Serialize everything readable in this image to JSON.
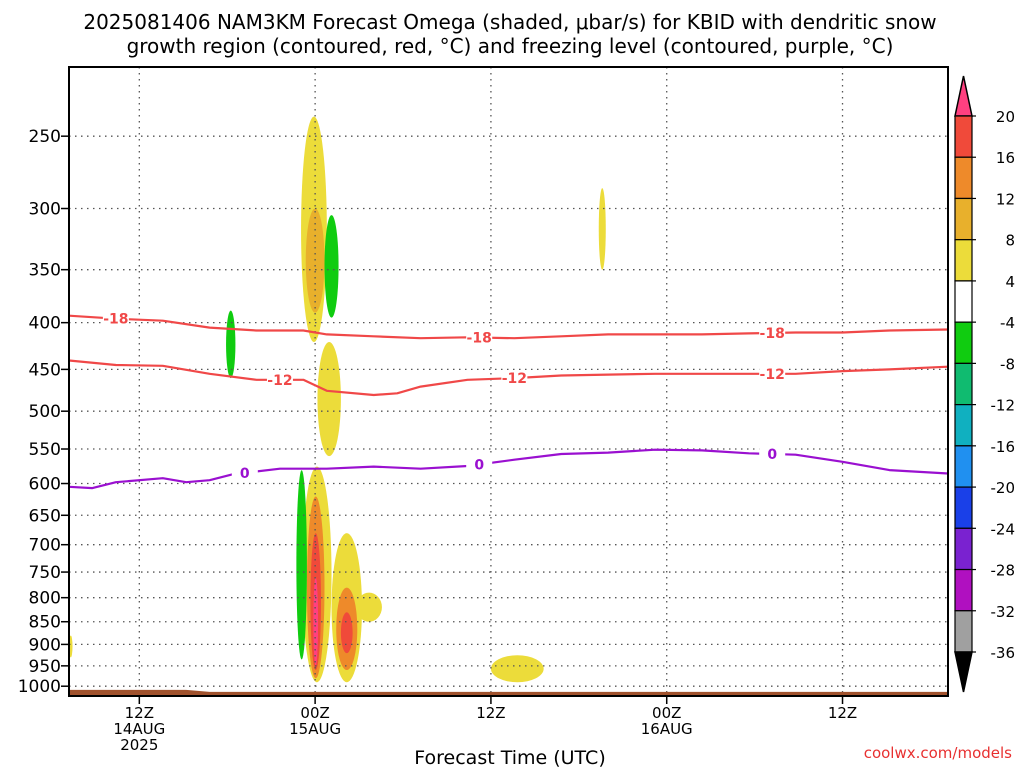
{
  "chart_data": {
    "type": "heatmap",
    "title_line1": "2025081406 NAM3KM Forecast Omega (shaded, μbar/s) for KBID with dendritic snow",
    "title_line2": "growth region (contoured, red, °C) and freezing level (contoured, purple, °C)",
    "xlabel": "Forecast Time (UTC)",
    "ylabel": "",
    "credit": "coolwx.com/models",
    "x_units": "hours since 2025-08-14 06Z",
    "xlim": [
      0,
      75
    ],
    "ylim_hPa": [
      1025,
      210
    ],
    "y_scale": "log-pressure",
    "y_ticks": [
      250,
      300,
      350,
      400,
      450,
      500,
      550,
      600,
      650,
      700,
      750,
      800,
      850,
      900,
      950,
      1000
    ],
    "x_ticks": [
      {
        "x": 6,
        "lines": [
          "12Z",
          "14AUG",
          "2025"
        ]
      },
      {
        "x": 21,
        "lines": [
          "00Z",
          "15AUG"
        ]
      },
      {
        "x": 36,
        "lines": [
          "12Z"
        ]
      },
      {
        "x": 51,
        "lines": [
          "00Z",
          "16AUG"
        ]
      },
      {
        "x": 66,
        "lines": [
          "12Z"
        ]
      }
    ],
    "grid": true,
    "colorbar": {
      "labels": [
        "20",
        "16",
        "12",
        "8",
        "4",
        "-4",
        "-8",
        "-12",
        "-16",
        "-20",
        "-24",
        "-28",
        "-32",
        "-36"
      ],
      "colors": [
        "#ff4080",
        "#f04a3a",
        "#ee8a2a",
        "#e8b02c",
        "#ecdc3a",
        "#ffffff",
        "#10cc10",
        "#10bb70",
        "#10b0c0",
        "#2090f0",
        "#1a40e8",
        "#7a22d0",
        "#b010c0",
        "#a0a0a0",
        "#000000"
      ]
    },
    "contours": [
      {
        "name": "-18",
        "color": "#f04848",
        "label_x": [
          4,
          35,
          60
        ],
        "points": [
          [
            0,
            393
          ],
          [
            4,
            396
          ],
          [
            8,
            398
          ],
          [
            12,
            405
          ],
          [
            16,
            408
          ],
          [
            20,
            408
          ],
          [
            22,
            412
          ],
          [
            26,
            414
          ],
          [
            30,
            416
          ],
          [
            34,
            415
          ],
          [
            38,
            416
          ],
          [
            42,
            414
          ],
          [
            46,
            412
          ],
          [
            50,
            412
          ],
          [
            54,
            412
          ],
          [
            58,
            411
          ],
          [
            62,
            410
          ],
          [
            66,
            410
          ],
          [
            70,
            408
          ],
          [
            75,
            407
          ]
        ]
      },
      {
        "name": "-12",
        "color": "#f04848",
        "label_x": [
          18,
          38,
          60
        ],
        "points": [
          [
            0,
            440
          ],
          [
            4,
            445
          ],
          [
            8,
            446
          ],
          [
            12,
            455
          ],
          [
            16,
            462
          ],
          [
            20,
            462
          ],
          [
            22,
            475
          ],
          [
            26,
            480
          ],
          [
            28,
            478
          ],
          [
            30,
            470
          ],
          [
            34,
            462
          ],
          [
            38,
            460
          ],
          [
            42,
            457
          ],
          [
            46,
            456
          ],
          [
            50,
            455
          ],
          [
            54,
            455
          ],
          [
            58,
            455
          ],
          [
            62,
            455
          ],
          [
            66,
            452
          ],
          [
            70,
            450
          ],
          [
            75,
            447
          ]
        ]
      },
      {
        "name": "0",
        "color": "#9a10d0",
        "label_x": [
          15,
          35,
          60
        ],
        "points": [
          [
            0,
            605
          ],
          [
            2,
            607
          ],
          [
            4,
            598
          ],
          [
            8,
            592
          ],
          [
            10,
            598
          ],
          [
            12,
            595
          ],
          [
            14,
            586
          ],
          [
            18,
            578
          ],
          [
            22,
            578
          ],
          [
            26,
            575
          ],
          [
            30,
            578
          ],
          [
            34,
            574
          ],
          [
            38,
            565
          ],
          [
            42,
            557
          ],
          [
            46,
            555
          ],
          [
            50,
            551
          ],
          [
            54,
            552
          ],
          [
            58,
            556
          ],
          [
            62,
            558
          ],
          [
            66,
            568
          ],
          [
            70,
            580
          ],
          [
            75,
            585
          ]
        ]
      }
    ],
    "omega_cells": [
      {
        "x": [
          19.8,
          22.0
        ],
        "p": [
          238,
          420
        ],
        "value": 5
      },
      {
        "x": [
          20.2,
          21.8
        ],
        "p": [
          300,
          390
        ],
        "value": 10
      },
      {
        "x": [
          21.2,
          23.2
        ],
        "p": [
          420,
          560
        ],
        "value": 5
      },
      {
        "x": [
          19.9,
          22.4
        ],
        "p": [
          575,
          990
        ],
        "value": 6
      },
      {
        "x": [
          20.3,
          21.8
        ],
        "p": [
          620,
          980
        ],
        "value": 12
      },
      {
        "x": [
          20.6,
          21.5
        ],
        "p": [
          680,
          960
        ],
        "value": 18
      },
      {
        "x": [
          20.85,
          21.25
        ],
        "p": [
          760,
          950
        ],
        "value": 22
      },
      {
        "x": [
          22.4,
          25.0
        ],
        "p": [
          680,
          990
        ],
        "value": 5
      },
      {
        "x": [
          22.8,
          24.6
        ],
        "p": [
          780,
          960
        ],
        "value": 12
      },
      {
        "x": [
          23.2,
          24.2
        ],
        "p": [
          830,
          920
        ],
        "value": 18
      },
      {
        "x": [
          24.5,
          26.7
        ],
        "p": [
          790,
          850
        ],
        "value": 5
      },
      {
        "x": [
          36.0,
          40.5
        ],
        "p": [
          925,
          990
        ],
        "value": 5
      },
      {
        "x": [
          45.2,
          45.8
        ],
        "p": [
          285,
          350
        ],
        "value": 5
      },
      {
        "x": [
          0.0,
          0.3
        ],
        "p": [
          880,
          930
        ],
        "value": 5
      },
      {
        "x": [
          21.8,
          23.0
        ],
        "p": [
          305,
          395
        ],
        "value": -6
      },
      {
        "x": [
          13.4,
          14.2
        ],
        "p": [
          388,
          460
        ],
        "value": -6
      },
      {
        "x": [
          19.4,
          20.3
        ],
        "p": [
          580,
          935
        ],
        "value": -6
      }
    ],
    "terrain": {
      "color": "#a0522d",
      "p_top": 1012
    }
  }
}
